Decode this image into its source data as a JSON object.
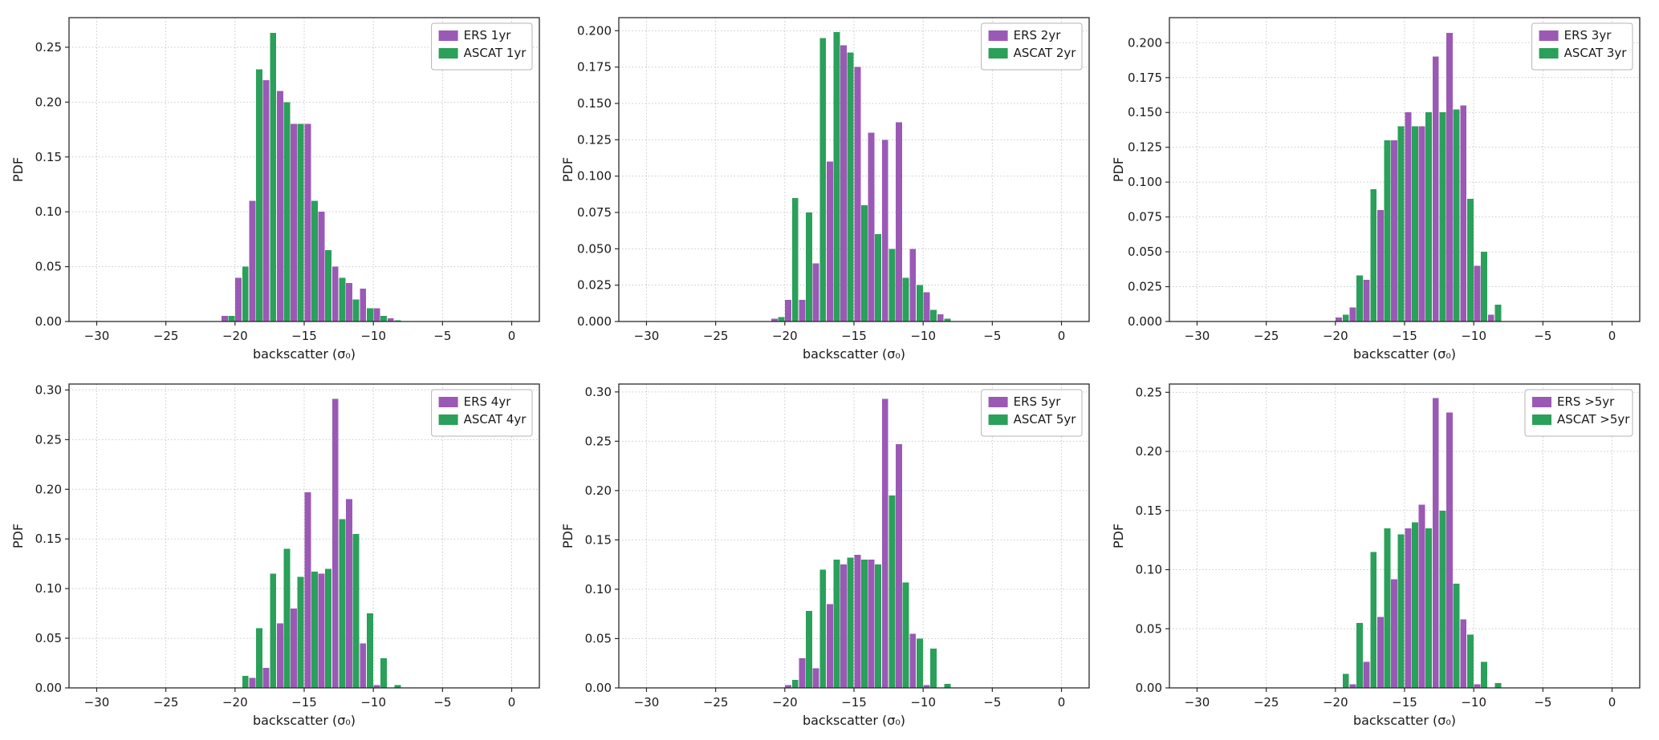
{
  "figure": {
    "background": "#ffffff",
    "colors": {
      "ers_purple": "#9b59b6",
      "ascat_green": "#2aa05a",
      "grid": "#c8c8c8",
      "spine": "#2b2b2b"
    }
  },
  "chart_data": [
    {
      "type": "bar",
      "subtype": "grouped-histogram",
      "xlabel": "backscatter (σ₀)",
      "ylabel": "PDF",
      "grid": true,
      "legend_position": "upper right",
      "xlim": [
        -32,
        2
      ],
      "ylim": [
        0,
        0.277
      ],
      "xticks": [
        -30,
        -25,
        -20,
        -15,
        -10,
        -5,
        0
      ],
      "yticks": [
        0.0,
        0.05,
        0.1,
        0.15,
        0.2,
        0.25
      ],
      "ydecimals": 2,
      "bin_centers": [
        -20.5,
        -19.5,
        -18.5,
        -17.5,
        -16.5,
        -15.5,
        -14.5,
        -13.5,
        -12.5,
        -11.5,
        -10.5,
        -9.5,
        -8.5
      ],
      "series": [
        {
          "name": "ERS 1yr",
          "color": "#9b59b6",
          "values": [
            0.005,
            0.04,
            0.11,
            0.22,
            0.21,
            0.18,
            0.18,
            0.1,
            0.05,
            0.035,
            0.03,
            0.012,
            0.003
          ]
        },
        {
          "name": "ASCAT 1yr",
          "color": "#2aa05a",
          "values": [
            0.005,
            0.05,
            0.23,
            0.263,
            0.2,
            0.18,
            0.11,
            0.065,
            0.04,
            0.02,
            0.012,
            0.005,
            0.001
          ]
        }
      ]
    },
    {
      "type": "bar",
      "subtype": "grouped-histogram",
      "xlabel": "backscatter (σ₀)",
      "ylabel": "PDF",
      "grid": true,
      "legend_position": "upper right",
      "xlim": [
        -32,
        2
      ],
      "ylim": [
        0,
        0.209
      ],
      "xticks": [
        -30,
        -25,
        -20,
        -15,
        -10,
        -5,
        0
      ],
      "yticks": [
        0.0,
        0.025,
        0.05,
        0.075,
        0.1,
        0.125,
        0.15,
        0.175,
        0.2
      ],
      "ydecimals": 3,
      "bin_centers": [
        -20.5,
        -19.5,
        -18.5,
        -17.5,
        -16.5,
        -15.5,
        -14.5,
        -13.5,
        -12.5,
        -11.5,
        -10.5,
        -9.5,
        -8.5
      ],
      "series": [
        {
          "name": "ERS 2yr",
          "color": "#9b59b6",
          "values": [
            0.002,
            0.015,
            0.015,
            0.04,
            0.11,
            0.19,
            0.175,
            0.13,
            0.125,
            0.137,
            0.05,
            0.02,
            0.005
          ]
        },
        {
          "name": "ASCAT 2yr",
          "color": "#2aa05a",
          "values": [
            0.003,
            0.085,
            0.075,
            0.195,
            0.199,
            0.185,
            0.08,
            0.06,
            0.05,
            0.03,
            0.025,
            0.008,
            0.002
          ]
        }
      ]
    },
    {
      "type": "bar",
      "subtype": "grouped-histogram",
      "xlabel": "backscatter (σ₀)",
      "ylabel": "PDF",
      "grid": true,
      "legend_position": "upper right",
      "xlim": [
        -32,
        2
      ],
      "ylim": [
        0,
        0.218
      ],
      "xticks": [
        -30,
        -25,
        -20,
        -15,
        -10,
        -5,
        0
      ],
      "yticks": [
        0.0,
        0.025,
        0.05,
        0.075,
        0.1,
        0.125,
        0.15,
        0.175,
        0.2
      ],
      "ydecimals": 3,
      "bin_centers": [
        -20.5,
        -19.5,
        -18.5,
        -17.5,
        -16.5,
        -15.5,
        -14.5,
        -13.5,
        -12.5,
        -11.5,
        -10.5,
        -9.5,
        -8.5
      ],
      "series": [
        {
          "name": "ERS 3yr",
          "color": "#9b59b6",
          "values": [
            0,
            0.003,
            0.01,
            0.03,
            0.08,
            0.13,
            0.15,
            0.14,
            0.19,
            0.207,
            0.155,
            0.04,
            0.005
          ]
        },
        {
          "name": "ASCAT 3yr",
          "color": "#2aa05a",
          "values": [
            0,
            0.005,
            0.033,
            0.095,
            0.13,
            0.14,
            0.14,
            0.15,
            0.15,
            0.152,
            0.088,
            0.05,
            0.012
          ]
        }
      ]
    },
    {
      "type": "bar",
      "subtype": "grouped-histogram",
      "xlabel": "backscatter (σ₀)",
      "ylabel": "PDF",
      "grid": true,
      "legend_position": "upper right",
      "xlim": [
        -32,
        2
      ],
      "ylim": [
        0,
        0.306
      ],
      "xticks": [
        -30,
        -25,
        -20,
        -15,
        -10,
        -5,
        0
      ],
      "yticks": [
        0.0,
        0.05,
        0.1,
        0.15,
        0.2,
        0.25,
        0.3
      ],
      "ydecimals": 2,
      "bin_centers": [
        -20.5,
        -19.5,
        -18.5,
        -17.5,
        -16.5,
        -15.5,
        -14.5,
        -13.5,
        -12.5,
        -11.5,
        -10.5,
        -9.5,
        -8.5
      ],
      "series": [
        {
          "name": "ERS 4yr",
          "color": "#9b59b6",
          "values": [
            0,
            0,
            0.01,
            0.02,
            0.065,
            0.08,
            0.197,
            0.115,
            0.291,
            0.19,
            0.045,
            0.003,
            0
          ]
        },
        {
          "name": "ASCAT 4yr",
          "color": "#2aa05a",
          "values": [
            0,
            0.012,
            0.06,
            0.115,
            0.14,
            0.112,
            0.117,
            0.12,
            0.17,
            0.155,
            0.075,
            0.03,
            0.003
          ]
        }
      ]
    },
    {
      "type": "bar",
      "subtype": "grouped-histogram",
      "xlabel": "backscatter (σ₀)",
      "ylabel": "PDF",
      "grid": true,
      "legend_position": "upper right",
      "xlim": [
        -32,
        2
      ],
      "ylim": [
        0,
        0.308
      ],
      "xticks": [
        -30,
        -25,
        -20,
        -15,
        -10,
        -5,
        0
      ],
      "yticks": [
        0.0,
        0.05,
        0.1,
        0.15,
        0.2,
        0.25,
        0.3
      ],
      "ydecimals": 2,
      "bin_centers": [
        -20.5,
        -19.5,
        -18.5,
        -17.5,
        -16.5,
        -15.5,
        -14.5,
        -13.5,
        -12.5,
        -11.5,
        -10.5,
        -9.5,
        -8.5
      ],
      "series": [
        {
          "name": "ERS 5yr",
          "color": "#9b59b6",
          "values": [
            0,
            0.003,
            0.03,
            0.02,
            0.085,
            0.125,
            0.135,
            0.13,
            0.293,
            0.247,
            0.055,
            0.003,
            0
          ]
        },
        {
          "name": "ASCAT 5yr",
          "color": "#2aa05a",
          "values": [
            0,
            0.008,
            0.078,
            0.12,
            0.13,
            0.132,
            0.13,
            0.125,
            0.195,
            0.107,
            0.05,
            0.04,
            0.004
          ]
        }
      ]
    },
    {
      "type": "bar",
      "subtype": "grouped-histogram",
      "xlabel": "backscatter (σ₀)",
      "ylabel": "PDF",
      "grid": true,
      "legend_position": "upper right",
      "xlim": [
        -32,
        2
      ],
      "ylim": [
        0,
        0.257
      ],
      "xticks": [
        -30,
        -25,
        -20,
        -15,
        -10,
        -5,
        0
      ],
      "yticks": [
        0.0,
        0.05,
        0.1,
        0.15,
        0.2,
        0.25
      ],
      "ydecimals": 2,
      "bin_centers": [
        -20.5,
        -19.5,
        -18.5,
        -17.5,
        -16.5,
        -15.5,
        -14.5,
        -13.5,
        -12.5,
        -11.5,
        -10.5,
        -9.5,
        -8.5
      ],
      "series": [
        {
          "name": "ERS >5yr",
          "color": "#9b59b6",
          "values": [
            0,
            0,
            0.003,
            0.022,
            0.06,
            0.092,
            0.135,
            0.155,
            0.245,
            0.233,
            0.058,
            0.003,
            0
          ]
        },
        {
          "name": "ASCAT >5yr",
          "color": "#2aa05a",
          "values": [
            0,
            0.012,
            0.055,
            0.115,
            0.135,
            0.13,
            0.14,
            0.135,
            0.15,
            0.088,
            0.045,
            0.022,
            0.004
          ]
        }
      ]
    }
  ]
}
